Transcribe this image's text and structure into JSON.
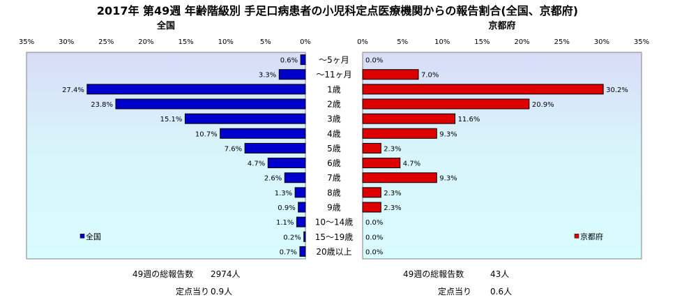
{
  "title": "2017年 第49週 年齢階級別 手足口病患者の小児科定点医療機関からの報告割合(全国、京都府)",
  "chart_data": {
    "type": "bar",
    "orientation": "horizontal",
    "categories": [
      "～5ヶ月",
      "～11ヶ月",
      "1歳",
      "2歳",
      "3歳",
      "4歳",
      "5歳",
      "6歳",
      "7歳",
      "8歳",
      "9歳",
      "10～14歳",
      "15～19歳",
      "20歳以上"
    ],
    "panels": [
      {
        "title": "全国",
        "series_name": "全国",
        "color": "#0000cc",
        "direction": "left",
        "xlim": [
          0,
          35
        ],
        "xticks": [
          "35%",
          "30%",
          "25%",
          "20%",
          "15%",
          "10%",
          "5%",
          "0%"
        ],
        "values": [
          0.6,
          3.3,
          27.4,
          23.8,
          15.1,
          10.7,
          7.6,
          4.7,
          2.6,
          1.3,
          0.9,
          1.1,
          0.2,
          0.7
        ],
        "labels": [
          "0.6%",
          "3.3%",
          "27.4%",
          "23.8%",
          "15.1%",
          "10.7%",
          "7.6%",
          "4.7%",
          "2.6%",
          "1.3%",
          "0.9%",
          "1.1%",
          "0.2%",
          "0.7%"
        ],
        "legend_placement": "bottom-left"
      },
      {
        "title": "京都府",
        "series_name": "京都府",
        "color": "#dd0000",
        "direction": "right",
        "xlim": [
          0,
          35
        ],
        "xticks": [
          "0%",
          "5%",
          "10%",
          "15%",
          "20%",
          "25%",
          "30%",
          "35%"
        ],
        "values": [
          0.0,
          7.0,
          30.2,
          20.9,
          11.6,
          9.3,
          2.3,
          4.7,
          9.3,
          2.3,
          2.3,
          0.0,
          0.0,
          0.0
        ],
        "labels": [
          "0.0%",
          "7.0%",
          "30.2%",
          "20.9%",
          "11.6%",
          "9.3%",
          "2.3%",
          "4.7%",
          "9.3%",
          "2.3%",
          "2.3%",
          "0.0%",
          "0.0%",
          "0.0%"
        ],
        "legend_placement": "bottom-right"
      }
    ],
    "grid": false,
    "background": "gradient light-blue"
  },
  "footer": {
    "national": {
      "total_label": "49週の総報告数",
      "total_value": "2974人",
      "per_label": "定点当り",
      "per_value": "0.9人"
    },
    "kyoto": {
      "total_label": "49週の総報告数",
      "total_value": "43人",
      "per_label": "定点当り",
      "per_value": "0.6人"
    }
  }
}
